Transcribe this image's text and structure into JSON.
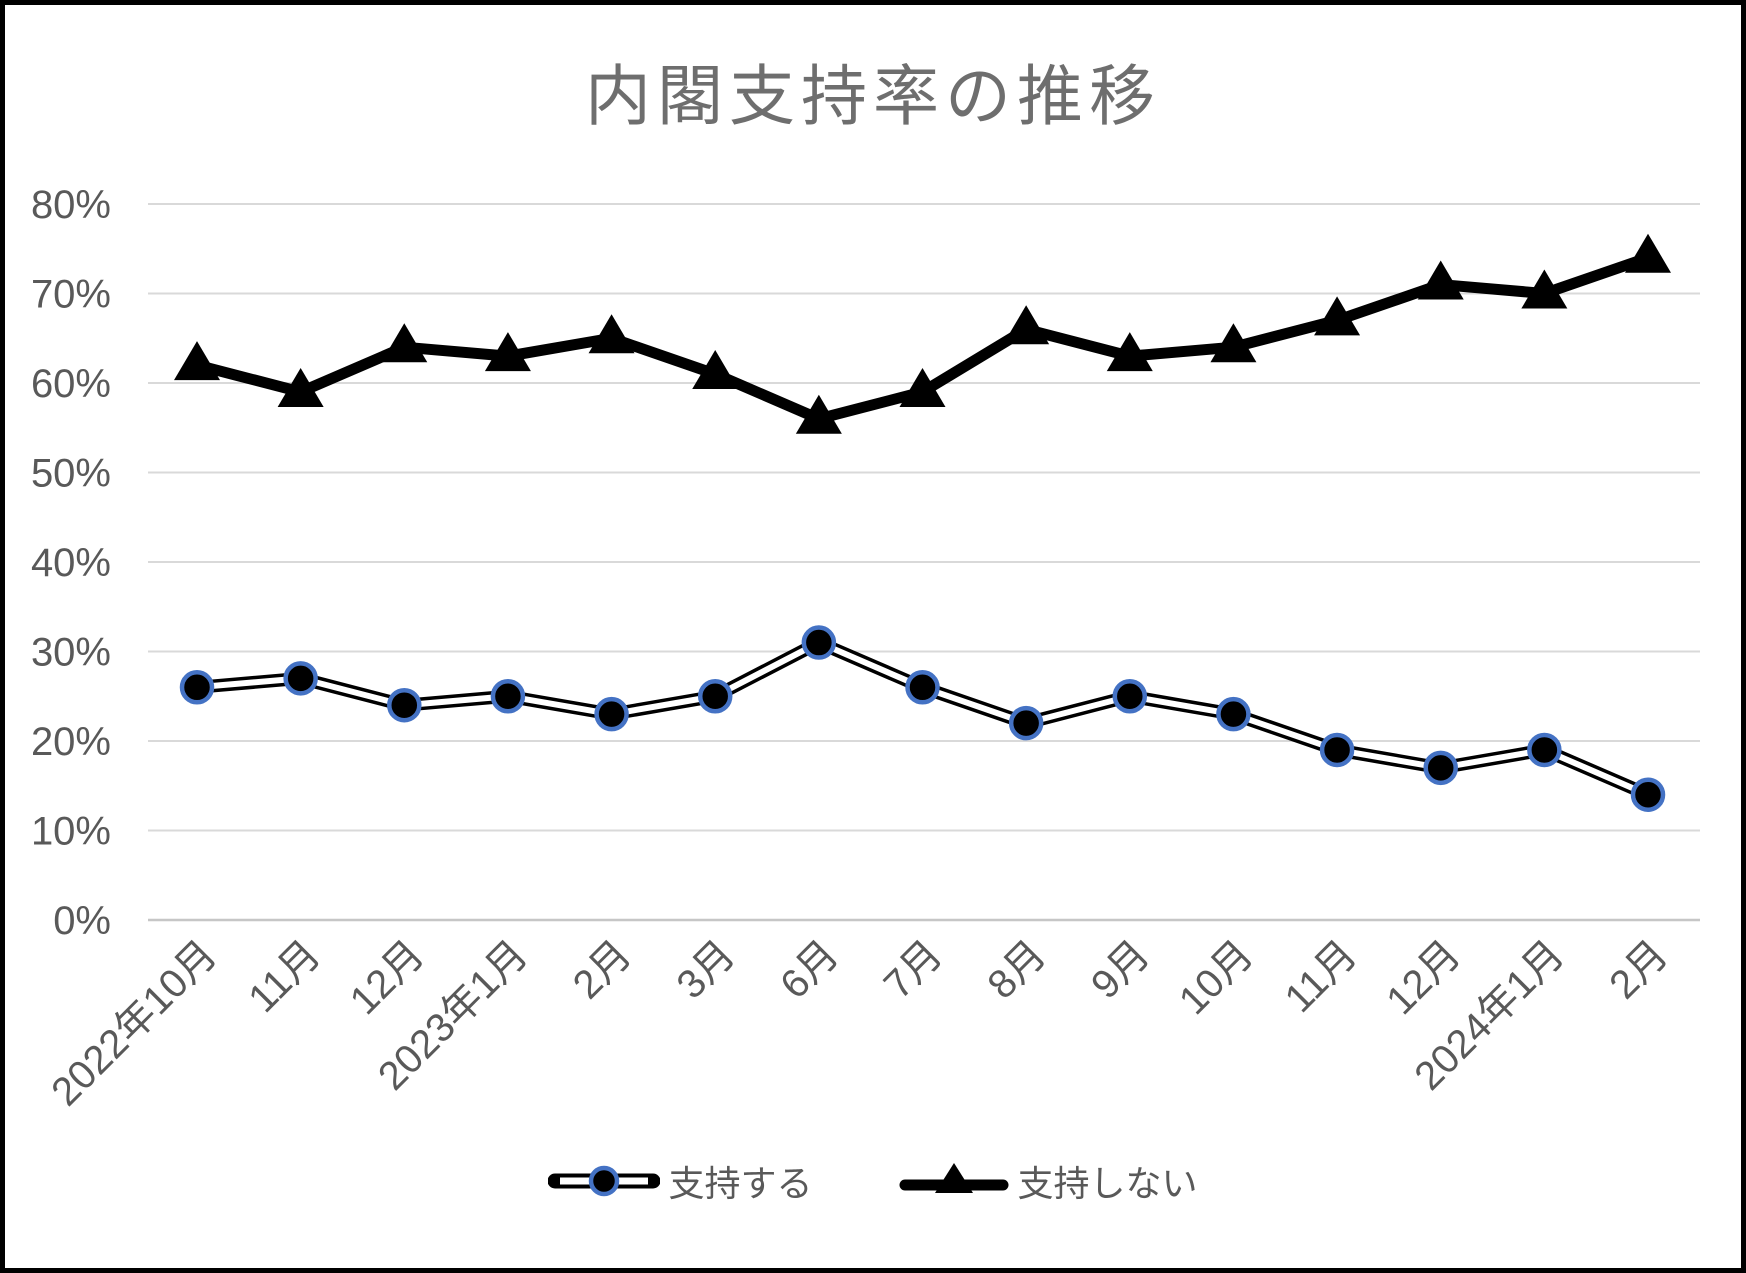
{
  "chart_data": {
    "type": "line",
    "title": "内閣支持率の推移",
    "categories": [
      "2022年10月",
      "11月",
      "12月",
      "2023年1月",
      "2月",
      "3月",
      "6月",
      "7月",
      "8月",
      "9月",
      "10月",
      "11月",
      "12月",
      "2024年1月",
      "2月"
    ],
    "series": [
      {
        "name": "支持する",
        "slug": "approve",
        "marker": "circle",
        "line_style": "double-track",
        "line_color": "#000000",
        "marker_fill": "#000000",
        "marker_ring": "#4472c4",
        "values": [
          26,
          27,
          24,
          25,
          23,
          25,
          31,
          26,
          22,
          25,
          23,
          19,
          17,
          19,
          14
        ]
      },
      {
        "name": "支持しない",
        "slug": "disapprove",
        "marker": "triangle",
        "line_style": "solid",
        "line_color": "#000000",
        "marker_fill": "#000000",
        "values": [
          62,
          59,
          64,
          63,
          65,
          61,
          56,
          59,
          66,
          63,
          64,
          67,
          71,
          70,
          74
        ]
      }
    ],
    "y_axis": {
      "min": 0,
      "max": 80,
      "step": 10,
      "tick_labels": [
        "0%",
        "10%",
        "20%",
        "30%",
        "40%",
        "50%",
        "60%",
        "70%",
        "80%"
      ]
    },
    "grid": true,
    "legend_position": "bottom",
    "colors": {
      "background": "#ffffff",
      "border": "#000000",
      "gridline": "#d9d9d9",
      "axis_line": "#c6c6c6",
      "tick_text": "#595959",
      "title_text": "#6e6e6e",
      "legend_text": "#595959"
    }
  }
}
